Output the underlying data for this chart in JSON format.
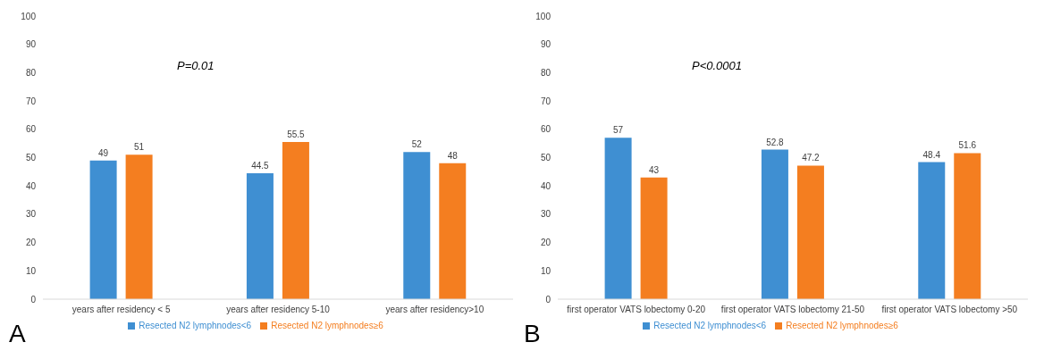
{
  "chart_data": [
    {
      "type": "bar",
      "categories": [
        "years after residency < 5",
        "years after residency 5-10",
        "years after residency>10"
      ],
      "series": [
        {
          "name": "Resected N2 lymphnodes<6",
          "color": "#3f8fd2",
          "values": [
            49,
            44.5,
            52
          ]
        },
        {
          "name": "Resected N2 lymphnodes≥6",
          "color": "#f47e20",
          "values": [
            51,
            55.5,
            48
          ]
        }
      ],
      "ylim": [
        0,
        100
      ],
      "yticks": [
        0,
        10,
        20,
        30,
        40,
        50,
        60,
        70,
        80,
        90,
        100
      ],
      "grid": false,
      "legend": "bottom",
      "data_labels": true,
      "annotations": [
        "P=0.01",
        "A"
      ]
    },
    {
      "type": "bar",
      "categories": [
        "first operator VATS lobectomy 0-20",
        "first operator VATS lobectomy 21-50",
        "first operator VATS lobectomy >50"
      ],
      "series": [
        {
          "name": "Resected N2 lymphnodes<6",
          "color": "#3f8fd2",
          "values": [
            57,
            52.8,
            48.4
          ]
        },
        {
          "name": "Resected N2 lymphnodes≥6",
          "color": "#f47e20",
          "values": [
            43,
            47.2,
            51.6
          ]
        }
      ],
      "ylim": [
        0,
        100
      ],
      "yticks": [
        0,
        10,
        20,
        30,
        40,
        50,
        60,
        70,
        80,
        90,
        100
      ],
      "grid": false,
      "legend": "bottom",
      "data_labels": true,
      "annotations": [
        "P<0.0001",
        "B"
      ]
    }
  ]
}
